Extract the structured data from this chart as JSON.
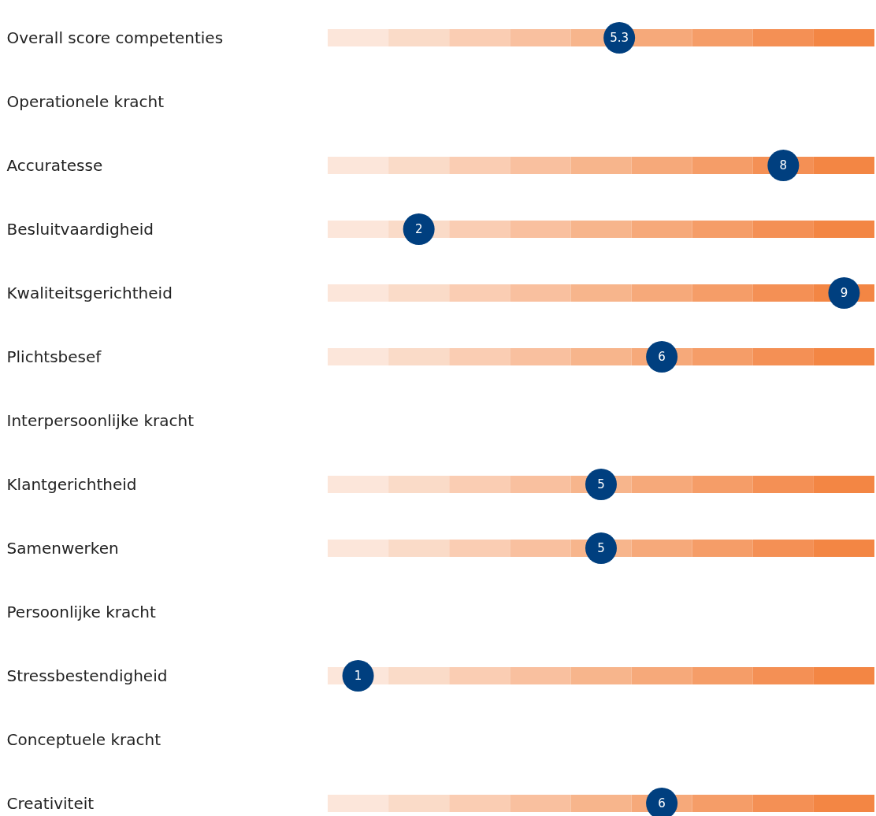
{
  "chart_data": {
    "type": "other",
    "data_labels": true,
    "categories": [
      "Overall score competenties",
      "Operationele kracht",
      "Accuratesse",
      "Besluitvaardigheid",
      "Kwaliteitsgerichtheid",
      "Plichtsbesef",
      "Interpersoonlijke kracht",
      "Klantgerichtheid",
      "Samenwerken",
      "Persoonlijke kracht",
      "Stressbestendigheid",
      "Conceptuele kracht",
      "Creativiteit"
    ],
    "values": [
      5.3,
      null,
      8,
      2,
      9,
      6,
      null,
      5,
      5,
      null,
      1,
      null,
      6
    ],
    "color": "#003f7f"
  }
}
